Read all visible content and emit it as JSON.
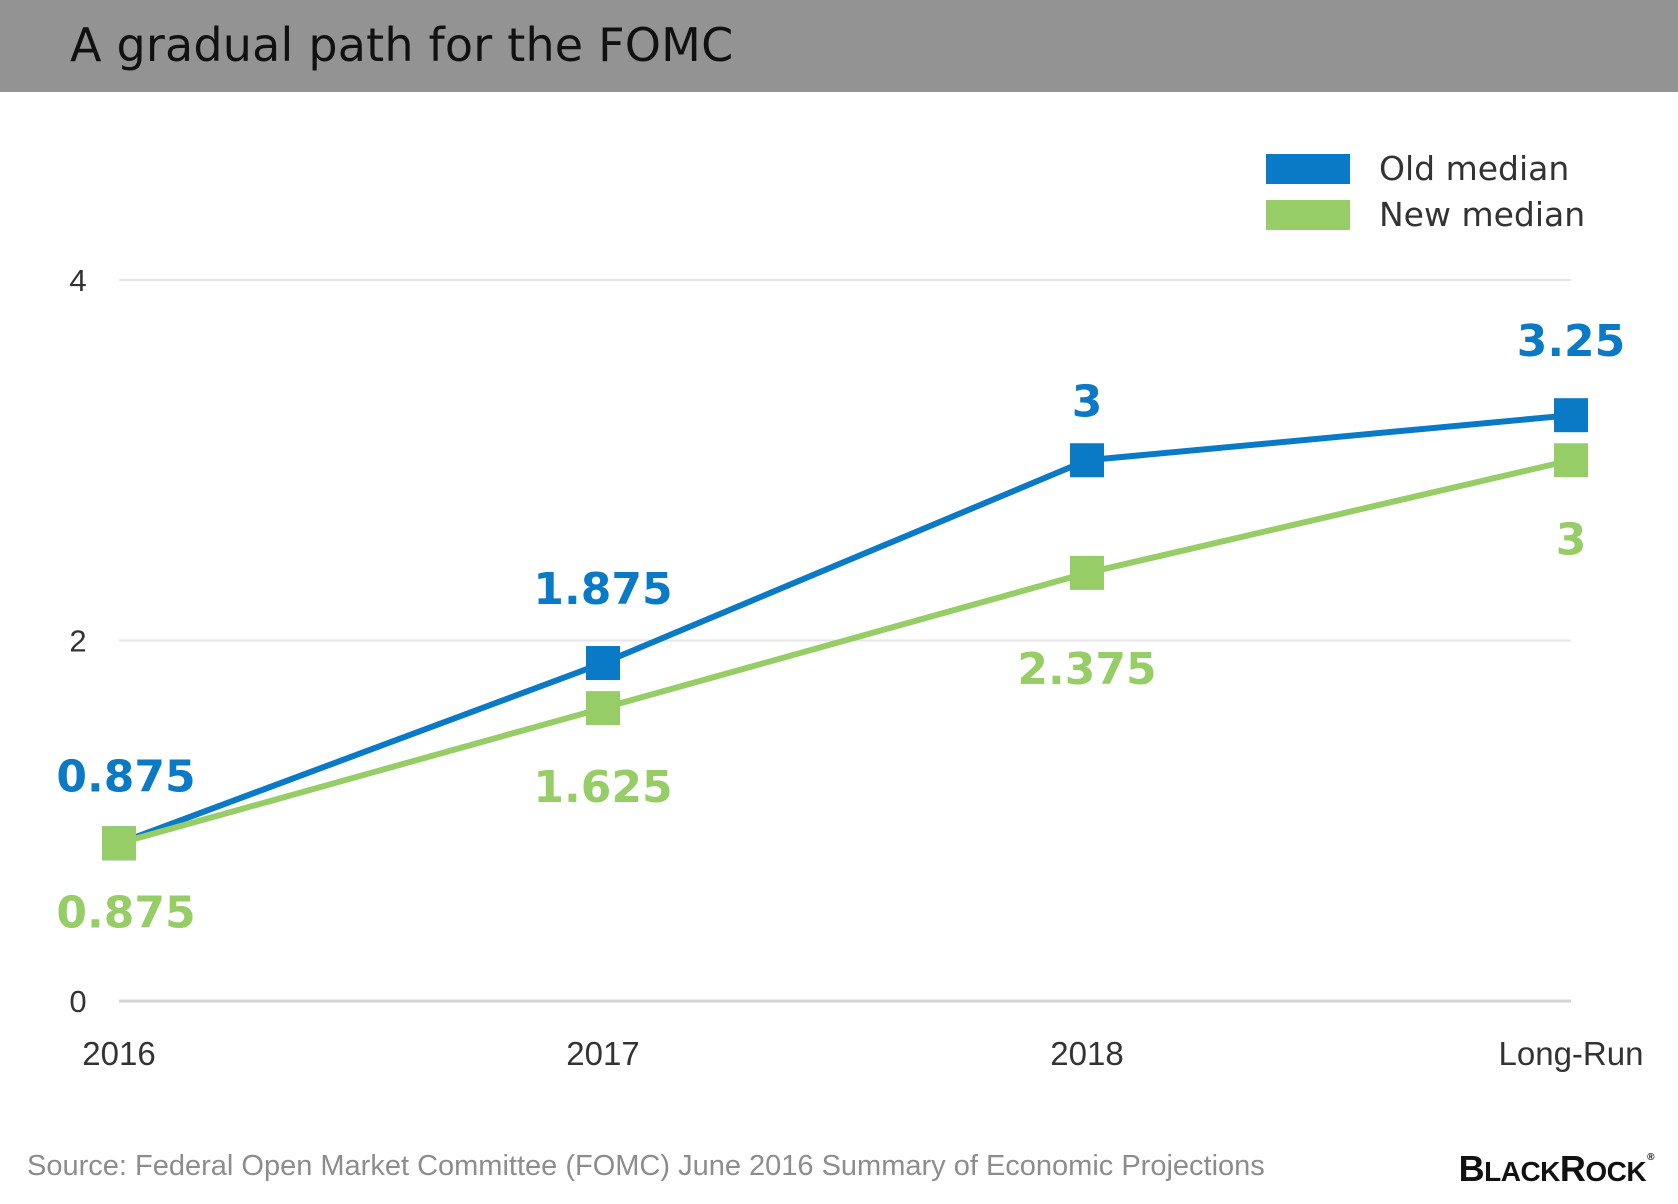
{
  "title": "A gradual path for the FOMC",
  "source": "Source: Federal Open Market Committee (FOMC) June 2016 Summary of Economic Projections",
  "logo": "BLACKROCK",
  "colors": {
    "old": "#0a7ac7",
    "new": "#96cd66",
    "grid": "#e6e6e6",
    "axis_text": "#333333"
  },
  "chart_data": {
    "type": "line",
    "categories": [
      "2016",
      "2017",
      "2018",
      "Long-Run"
    ],
    "series": [
      {
        "name": "Old median",
        "values": [
          0.875,
          1.875,
          3,
          3.25
        ],
        "labels": [
          "0.875",
          "1.875",
          "3",
          "3.25"
        ]
      },
      {
        "name": "New median",
        "values": [
          0.875,
          1.625,
          2.375,
          3
        ],
        "labels": [
          "0.875",
          "1.625",
          "2.375",
          "3"
        ]
      }
    ],
    "yticks": [
      "0",
      "2",
      "4"
    ],
    "ylim": [
      0,
      4
    ],
    "grid": true,
    "legend": "top-right"
  }
}
